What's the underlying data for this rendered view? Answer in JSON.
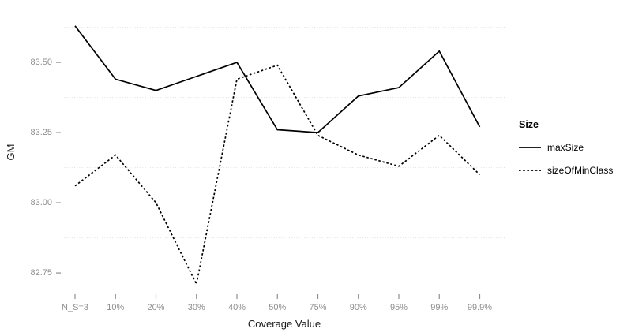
{
  "chart_data": {
    "type": "line",
    "title": "",
    "xlabel": "Coverage Value",
    "ylabel": "GM",
    "categories": [
      "N_S=3",
      "10%",
      "20%",
      "30%",
      "40%",
      "50%",
      "75%",
      "90%",
      "95%",
      "99%",
      "99.9%"
    ],
    "series": [
      {
        "name": "maxSize",
        "linetype": "solid",
        "values": [
          83.63,
          83.44,
          83.4,
          83.45,
          83.5,
          83.26,
          83.25,
          83.38,
          83.41,
          83.54,
          83.27
        ]
      },
      {
        "name": "sizeOfMinClass",
        "linetype": "dashed",
        "values": [
          83.06,
          83.17,
          83.0,
          82.71,
          83.44,
          83.49,
          83.24,
          83.17,
          83.13,
          83.24,
          83.1
        ]
      }
    ],
    "y_ticks": [
      82.75,
      83.0,
      83.25,
      83.5
    ],
    "y_tick_labels": [
      "82.75",
      "83.00",
      "83.25",
      "83.50"
    ],
    "minor_gridlines": [
      82.875,
      83.125,
      83.375,
      83.625
    ],
    "ylim": [
      82.68,
      83.68
    ],
    "grid": "minor-dotted-only",
    "legend": {
      "title": "Size",
      "position": "right"
    },
    "colors": {
      "series_color": "#000000",
      "tick_label": "#8e8e8e",
      "tick_mark": "#8e8e8e",
      "gridline": "#dedede",
      "axis_title": "#1a1a1a",
      "background": "#ffffff"
    }
  }
}
